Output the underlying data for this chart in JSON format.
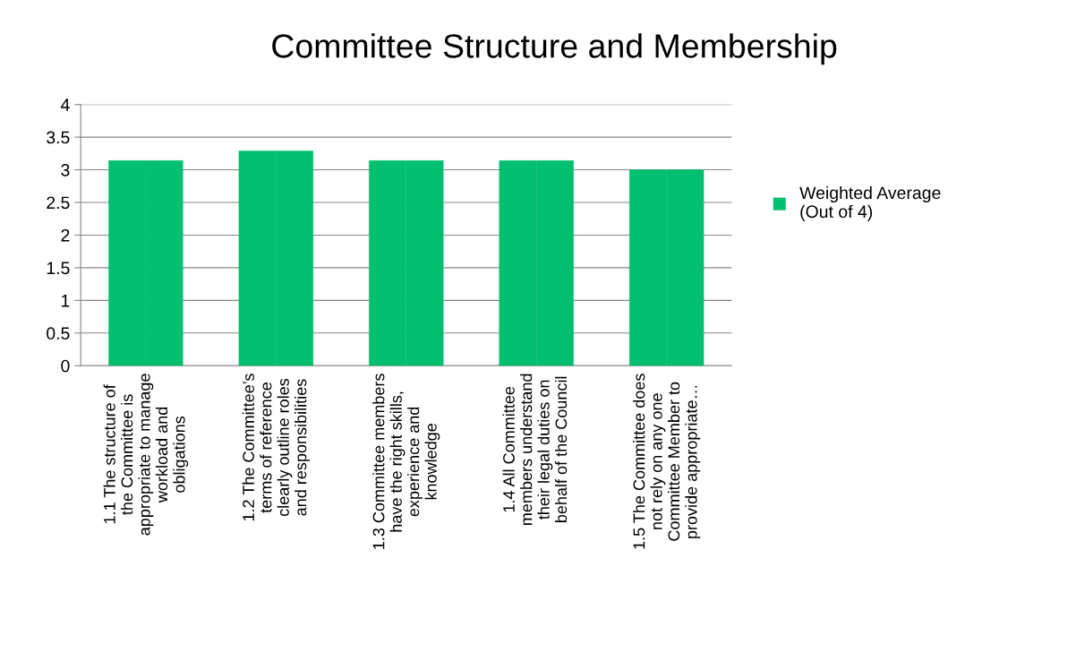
{
  "chart_data": {
    "type": "bar",
    "title": "Committee Structure and Membership",
    "categories": [
      "1.1 The structure of the Committee is appropriate to manage workload and obligations",
      "1.2 The Committee’s terms of reference clearly outline roles and responsibilities",
      "1.3 Committee members have the right skills, experience and knowledge",
      "1.4 All Committee members understand their legal duties on behalf of the Council",
      "1.5 The Committee does not rely on any one Committee Member to provide appropriate…"
    ],
    "series": [
      {
        "name": "Weighted Average (Out of 4)",
        "color": "#00bf6f",
        "values": [
          3.14,
          3.29,
          3.14,
          3.14,
          3.0
        ]
      },
      {
        "color": "#00bf6f",
        "values": [
          3.14,
          3.29,
          3.14,
          3.14,
          3.0
        ]
      }
    ],
    "ylim": [
      0,
      4
    ],
    "yticks": [
      0,
      0.5,
      1,
      1.5,
      2,
      2.5,
      3,
      3.5,
      4
    ],
    "grid": "y",
    "legend": "right"
  }
}
